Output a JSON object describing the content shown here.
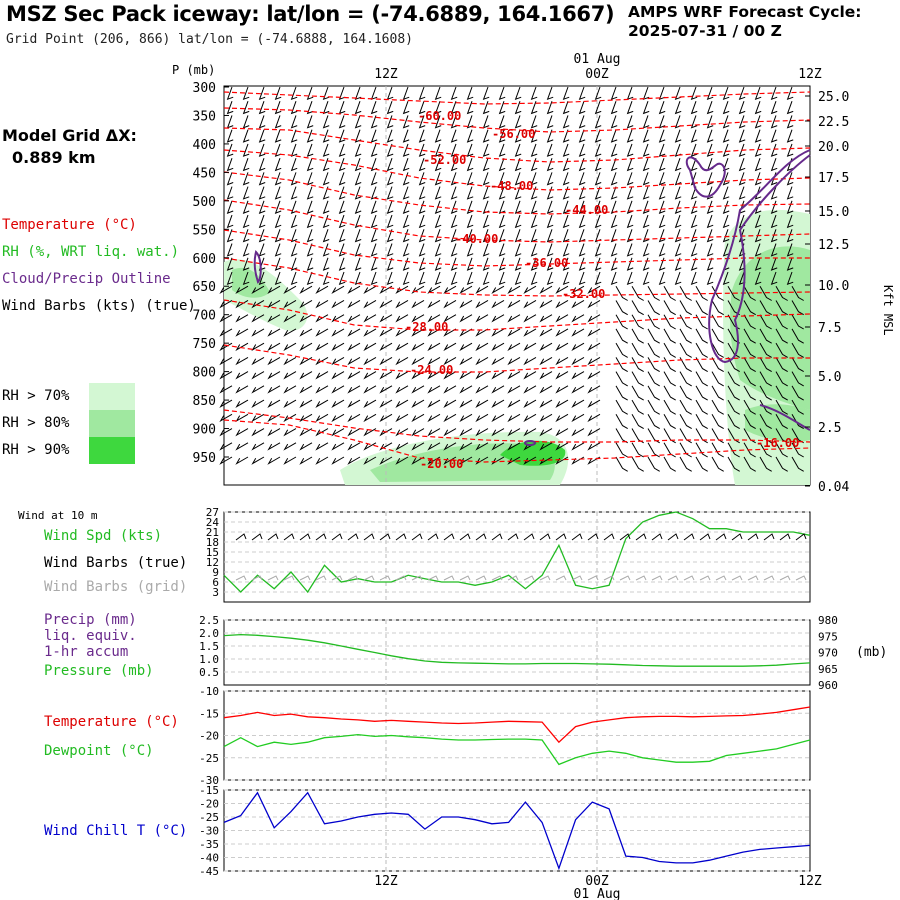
{
  "header": {
    "title": "MSZ Sec Pack iceway:  lat/lon = (-74.6889, 164.1667)",
    "subtitle": "Grid Point (206, 866) lat/lon = (-74.6888, 164.1608)",
    "cycle_line1": "AMPS WRF Forecast Cycle:",
    "cycle_line2": "2025-07-31 / 00  Z"
  },
  "legend": {
    "grid_title": "Model Grid ΔX:",
    "grid_value": "0.889 km",
    "temperature": "Temperature (°C)",
    "rh": "RH (%, WRT liq. wat.)",
    "cloud": "Cloud/Precip Outline",
    "wind_barbs": "Wind Barbs (kts) (true)",
    "rh_levels": [
      "RH > 70%",
      "RH > 80%",
      "RH > 90%"
    ],
    "rh_colors": [
      "#d3f7d3",
      "#a0e8a0",
      "#3ed83e"
    ]
  },
  "colors": {
    "temperature": "#ff0000",
    "dewpoint": "#22cc22",
    "wind_speed": "#22bb22",
    "pressure": "#22bb22",
    "cloud_outline": "#662a8c",
    "wind_chill": "#0000cc",
    "grid_barbs": "#aaaaaa",
    "label_red": "#dd0000",
    "label_purple": "#6a2a8c",
    "label_blue": "#0000cc"
  },
  "chart_data": [
    {
      "type": "line",
      "panel": "cross-section",
      "xlabel_top_date": "01 Aug",
      "x_ticks": [
        "12Z",
        "00Z",
        "12Z"
      ],
      "ylabel_left": "P (mb)",
      "ylabel_right": "Kft MSL",
      "pressure_ticks": [
        300,
        350,
        400,
        450,
        500,
        550,
        600,
        650,
        700,
        750,
        800,
        850,
        900,
        950
      ],
      "height_ticks": [
        "25.0",
        "22.5",
        "20.0",
        "17.5",
        "15.0",
        "12.5",
        "10.0",
        "7.5",
        "5.0",
        "2.5",
        "0.04"
      ],
      "temperature_labels": [
        "-60.00",
        "-56.00",
        "-52.00",
        "-48.00",
        "-44.00",
        "-40.00",
        "-36.00",
        "-32.00",
        "-28.00",
        "-24.00",
        "-20.00",
        "-16.00"
      ],
      "legend_ranges": [
        "RH > 70%",
        "RH > 80%",
        "RH > 90%"
      ]
    },
    {
      "type": "line",
      "panel": "wind",
      "title": "Wind at 10 m",
      "series": [
        {
          "name": "Wind Spd (kts)",
          "values": [
            8,
            3,
            8,
            4,
            9,
            3,
            11,
            6,
            7,
            6,
            6,
            8,
            7,
            6,
            6,
            5,
            6,
            8,
            4,
            8,
            17,
            5,
            4,
            5,
            19,
            24,
            26,
            27,
            25,
            22,
            22,
            21,
            21,
            21,
            21,
            20
          ]
        }
      ],
      "legend": [
        "Wind Spd (kts)",
        "Wind Barbs (true)",
        "Wind Barbs (grid)"
      ],
      "yticks": [
        3,
        6,
        9,
        12,
        15,
        18,
        21,
        24,
        27
      ],
      "ylim": [
        0,
        27
      ]
    },
    {
      "type": "line",
      "panel": "precip-pressure",
      "legend": [
        "Precip (mm)",
        "liq. equiv.",
        "1-hr accum",
        "Pressure (mb)"
      ],
      "yticks_left": [
        "0.5",
        "1.0",
        "1.5",
        "2.0",
        "2.5"
      ],
      "yticks_right": [
        "960",
        "965",
        "970",
        "975",
        "980"
      ],
      "right_unit": "(mb)",
      "series": [
        {
          "name": "Pressure (mb)",
          "values": [
            975.2,
            975.5,
            975.3,
            974.9,
            974.4,
            973.8,
            973.0,
            972.0,
            971.0,
            970.0,
            969.0,
            968.1,
            967.4,
            967.0,
            966.8,
            966.7,
            966.6,
            966.5,
            966.5,
            966.6,
            966.6,
            966.6,
            966.5,
            966.4,
            966.2,
            966.0,
            965.9,
            965.8,
            965.8,
            965.8,
            965.8,
            965.8,
            965.9,
            966.1,
            966.5,
            966.8
          ],
          "ylim": [
            960,
            980
          ]
        }
      ],
      "ylim": [
        0,
        2.5
      ]
    },
    {
      "type": "line",
      "panel": "temperature",
      "legend": [
        "Temperature (°C)",
        "Dewpoint (°C)"
      ],
      "yticks": [
        -10,
        -15,
        -20,
        -25,
        -30
      ],
      "ylim": [
        -30,
        -10
      ],
      "series": [
        {
          "name": "Temperature (°C)",
          "values": [
            -16,
            -15.5,
            -14.8,
            -15.5,
            -15.2,
            -15.8,
            -16,
            -16.3,
            -16.5,
            -16.8,
            -16.6,
            -16.8,
            -17.0,
            -17.2,
            -17.3,
            -17.2,
            -17.0,
            -16.8,
            -16.9,
            -17.0,
            -21.5,
            -18.0,
            -17.0,
            -16.5,
            -16.0,
            -15.8,
            -15.7,
            -15.7,
            -15.8,
            -15.7,
            -15.6,
            -15.5,
            -15.2,
            -14.8,
            -14.2,
            -13.6
          ]
        },
        {
          "name": "Dewpoint (°C)",
          "values": [
            -22.5,
            -20.5,
            -22.5,
            -21.5,
            -22.0,
            -21.5,
            -20.5,
            -20.2,
            -19.8,
            -20.2,
            -20.0,
            -20.3,
            -20.5,
            -20.8,
            -21.0,
            -21.0,
            -20.9,
            -20.8,
            -20.8,
            -21.0,
            -26.5,
            -25.0,
            -24.0,
            -23.5,
            -24.0,
            -25.0,
            -25.5,
            -26.0,
            -26.0,
            -25.8,
            -24.5,
            -24.0,
            -23.5,
            -23.0,
            -22.0,
            -21.0
          ]
        }
      ]
    },
    {
      "type": "line",
      "panel": "wind-chill",
      "legend": [
        "Wind Chill T (°C)"
      ],
      "yticks": [
        -15,
        -20,
        -25,
        -30,
        -35,
        -40,
        -45
      ],
      "ylim": [
        -45,
        -15
      ],
      "series": [
        {
          "name": "Wind Chill T (°C)",
          "values": [
            -27,
            -24.5,
            -16,
            -29,
            -23,
            -16,
            -27.5,
            -26.5,
            -25,
            -24,
            -23.5,
            -24,
            -29.5,
            -25,
            -25,
            -26,
            -27.5,
            -27,
            -19.5,
            -27,
            -44,
            -26,
            -19.5,
            -22,
            -39.5,
            -40,
            -41.5,
            -42,
            -42,
            -41,
            -39.5,
            -38,
            -37,
            -36.5,
            -36,
            -35.5
          ]
        }
      ]
    }
  ]
}
